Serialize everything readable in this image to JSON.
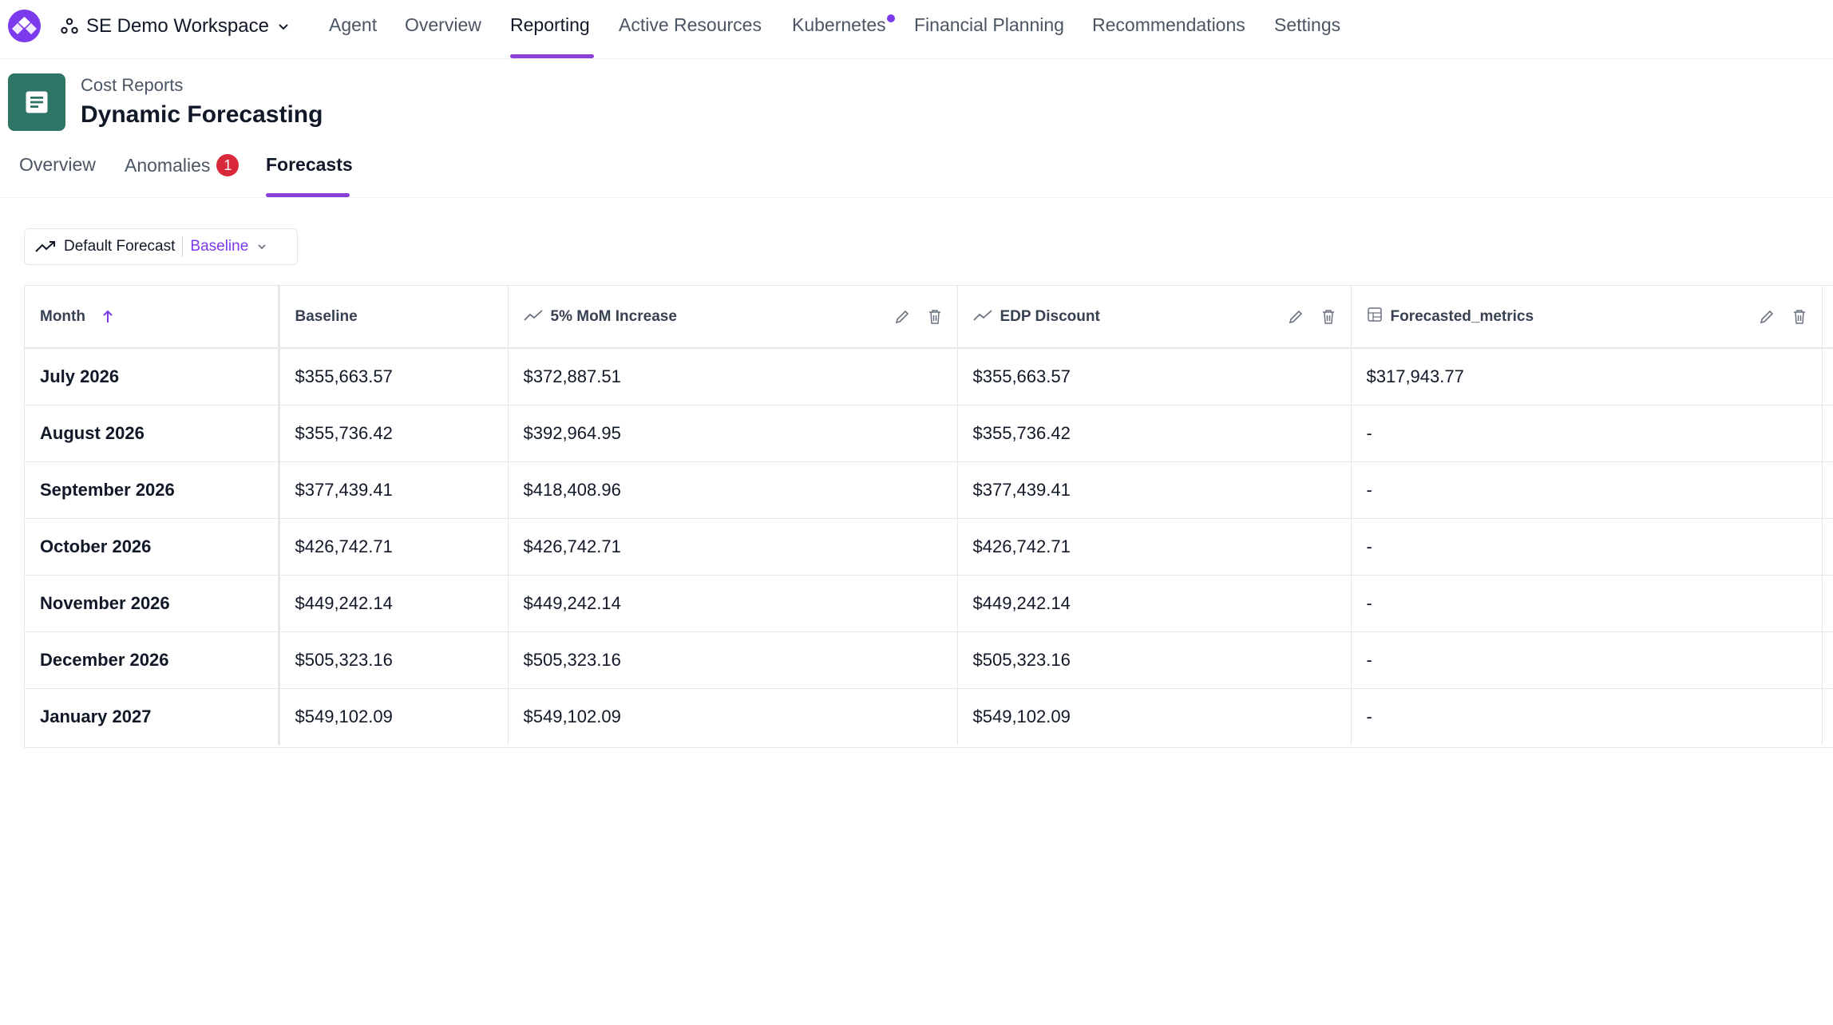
{
  "topnav": {
    "workspace": "SE Demo Workspace",
    "items": [
      {
        "label": "Agent"
      },
      {
        "label": "Overview"
      },
      {
        "label": "Reporting"
      },
      {
        "label": "Active Resources"
      },
      {
        "label": "Kubernetes"
      },
      {
        "label": "Financial Planning"
      },
      {
        "label": "Recommendations"
      },
      {
        "label": "Settings"
      }
    ],
    "active_item": "Reporting"
  },
  "header": {
    "kicker": "Cost Reports",
    "title": "Dynamic Forecasting"
  },
  "subtabs": {
    "items": [
      {
        "label": "Overview"
      },
      {
        "label": "Anomalies",
        "badge": "1"
      },
      {
        "label": "Forecasts"
      }
    ],
    "active_item": "Forecasts"
  },
  "forecast_selector": {
    "label": "Default Forecast",
    "value": "Baseline"
  },
  "table": {
    "columns": [
      {
        "label": "Month",
        "sort": "ascending"
      },
      {
        "label": "Baseline"
      },
      {
        "label": "5% MoM Increase",
        "icon": "trend-icon"
      },
      {
        "label": "EDP Discount",
        "icon": "trend-icon"
      },
      {
        "label": "Forecasted_metrics",
        "icon": "table-icon"
      }
    ],
    "rows": [
      {
        "month": "July 2026",
        "baseline": "$355,663.57",
        "mom": "$372,887.51",
        "edp": "$355,663.57",
        "metrics": "$317,943.77"
      },
      {
        "month": "August 2026",
        "baseline": "$355,736.42",
        "mom": "$392,964.95",
        "edp": "$355,736.42",
        "metrics": "-"
      },
      {
        "month": "September 2026",
        "baseline": "$377,439.41",
        "mom": "$418,408.96",
        "edp": "$377,439.41",
        "metrics": "-"
      },
      {
        "month": "October 2026",
        "baseline": "$426,742.71",
        "mom": "$426,742.71",
        "edp": "$426,742.71",
        "metrics": "-"
      },
      {
        "month": "November 2026",
        "baseline": "$449,242.14",
        "mom": "$449,242.14",
        "edp": "$449,242.14",
        "metrics": "-"
      },
      {
        "month": "December 2026",
        "baseline": "$505,323.16",
        "mom": "$505,323.16",
        "edp": "$505,323.16",
        "metrics": "-"
      },
      {
        "month": "January 2027",
        "baseline": "$549,102.09",
        "mom": "$549,102.09",
        "edp": "$549,102.09",
        "metrics": "-"
      }
    ]
  },
  "colors": {
    "accent": "#7c3aed",
    "doc_icon_bg": "#2e7566",
    "badge": "#d9283a"
  }
}
